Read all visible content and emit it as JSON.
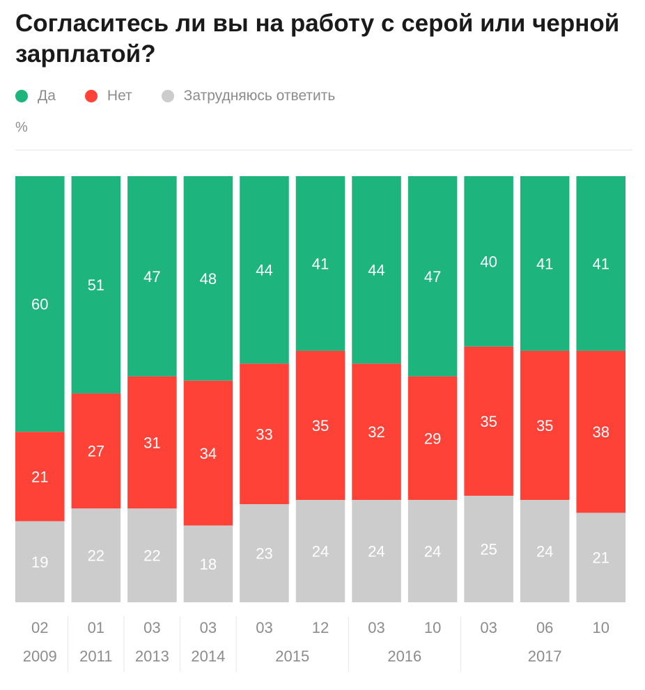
{
  "title": "Согласитесь ли вы на работу с серой или черной зарплатой?",
  "unit_label": "%",
  "legend": [
    {
      "label": "Да",
      "color": "#1db47d"
    },
    {
      "label": "Нет",
      "color": "#fe4238"
    },
    {
      "label": "Затрудняюсь ответить",
      "color": "#cccccc"
    }
  ],
  "chart_data": {
    "type": "bar",
    "stacked": true,
    "orientation": "vertical",
    "ylim": [
      0,
      100
    ],
    "categories": [
      "02 2009",
      "01 2011",
      "03 2013",
      "03 2014",
      "03 2015",
      "12 2015",
      "03 2016",
      "10 2016",
      "03 2017",
      "06 2017",
      "10 2017"
    ],
    "tick_months": [
      "02",
      "01",
      "03",
      "03",
      "03",
      "12",
      "03",
      "10",
      "03",
      "06",
      "10"
    ],
    "tick_years": [
      {
        "label": "2009",
        "span": [
          0,
          0
        ]
      },
      {
        "label": "2011",
        "span": [
          1,
          1
        ]
      },
      {
        "label": "2013",
        "span": [
          2,
          2
        ]
      },
      {
        "label": "2014",
        "span": [
          3,
          3
        ]
      },
      {
        "label": "2015",
        "span": [
          4,
          5
        ]
      },
      {
        "label": "2016",
        "span": [
          6,
          7
        ]
      },
      {
        "label": "2017",
        "span": [
          8,
          10
        ]
      }
    ],
    "series": [
      {
        "name": "Да",
        "color": "#1db47d",
        "values": [
          60,
          51,
          47,
          48,
          44,
          41,
          44,
          47,
          40,
          41,
          41
        ]
      },
      {
        "name": "Нет",
        "color": "#fe4238",
        "values": [
          21,
          27,
          31,
          34,
          33,
          35,
          32,
          29,
          35,
          35,
          38
        ]
      },
      {
        "name": "Затрудняюсь ответить",
        "color": "#cccccc",
        "values": [
          19,
          22,
          22,
          18,
          23,
          24,
          24,
          24,
          25,
          24,
          21
        ]
      }
    ],
    "grid": false,
    "legend_position": "top-left"
  }
}
